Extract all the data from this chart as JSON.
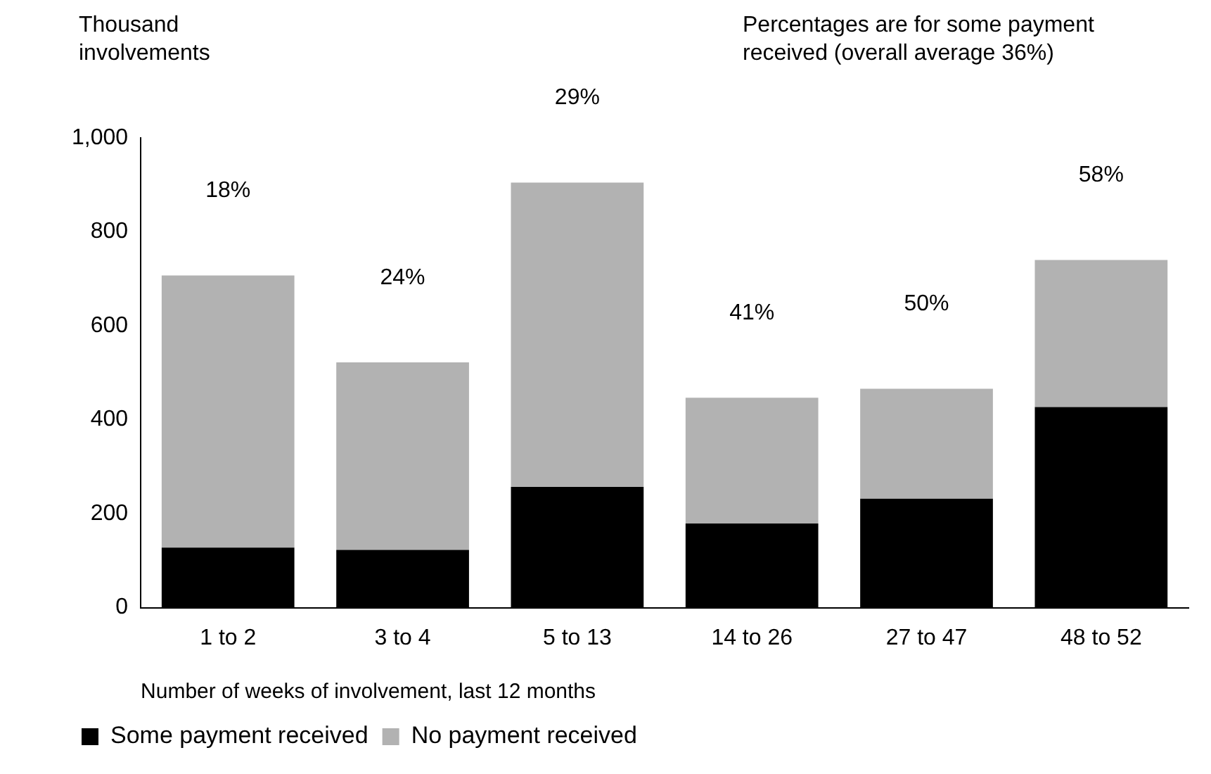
{
  "chart_data": {
    "type": "bar",
    "stacked": true,
    "ylabel": "Thousand involvements",
    "xlabel": "Number of weeks of involvement, last 12 months",
    "categories": [
      "1 to 2",
      "3 to 4",
      "5 to 13",
      "14 to 26",
      "27 to 47",
      "48 to 52"
    ],
    "series": [
      {
        "name": "Some payment received",
        "color": "#000000",
        "values": [
          128,
          123,
          257,
          179,
          232,
          427
        ]
      },
      {
        "name": "No payment received",
        "color": "#b2b2b2",
        "values": [
          579,
          399,
          648,
          268,
          234,
          313
        ]
      }
    ],
    "ylim": [
      0,
      1000
    ],
    "yticks": [
      0,
      200,
      400,
      600,
      800,
      {
        "value": 1000,
        "label": "1,000"
      }
    ],
    "grid": false,
    "legend": "bottom left",
    "annotations": [
      "18%",
      "24%",
      "29%",
      "41%",
      "50%",
      "58%",
      "Percentages are for some payment received (overall average 36%)"
    ]
  }
}
